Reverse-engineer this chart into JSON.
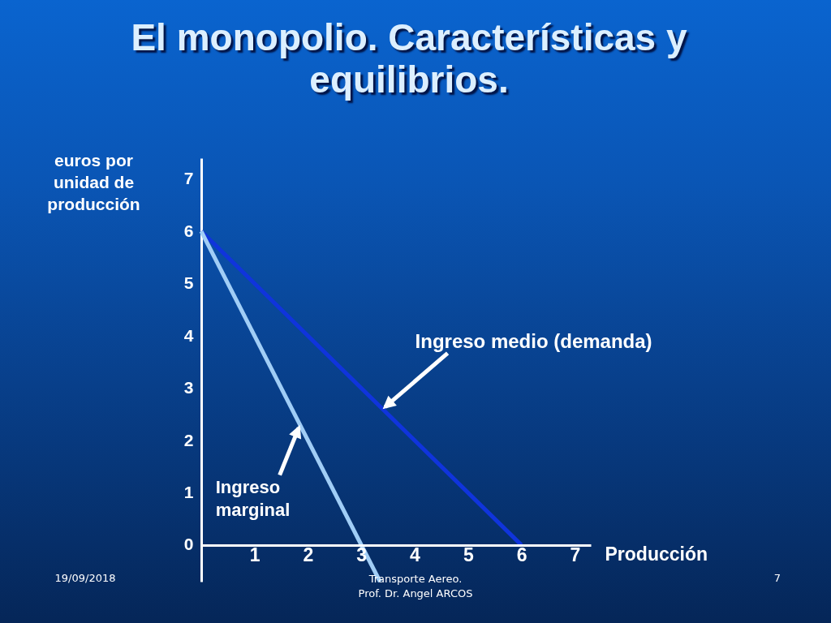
{
  "chart_data": {
    "type": "line",
    "title": "El monopolio. Características y equilibrios.",
    "xlabel": "Producción",
    "ylabel": "euros por unidad de producción",
    "series": [
      {
        "color": "#1034dc",
        "x": [
          0,
          6
        ],
        "values": [
          6,
          0
        ]
      },
      {
        "color": "#a0cdf6",
        "x": [
          0,
          3.35
        ],
        "values": [
          6,
          -0.7
        ]
      }
    ],
    "xlim": [
      0,
      7.3
    ],
    "ylim": [
      -0.7,
      7.4
    ],
    "xticks": [
      1,
      2,
      3,
      4,
      5,
      6,
      7
    ],
    "yticks": [
      0,
      1,
      2,
      3,
      4,
      5,
      6,
      7
    ],
    "annotations": [
      {
        "text": "Ingreso medio (demanda)",
        "x": 3.4,
        "y": 2.6
      },
      {
        "text": "Ingreso marginal",
        "x": 1.85,
        "y": 2.3
      },
      "19/09/2018",
      "Transporte Aereo.\nProf. Dr. Angel ARCOS",
      "7"
    ]
  }
}
